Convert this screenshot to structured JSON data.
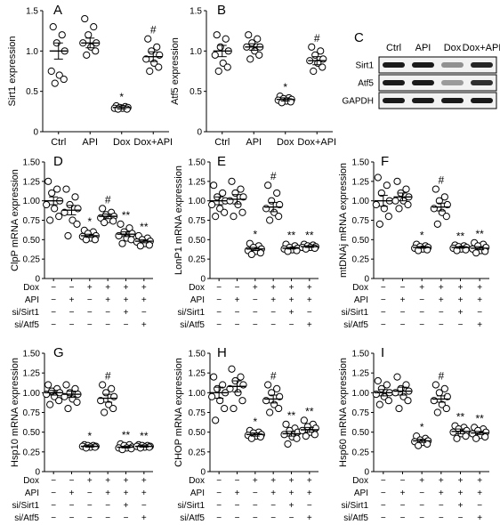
{
  "chart_data": [
    {
      "panel": "A",
      "type": "scatter",
      "ylabel": "Sirt1 expression",
      "ylim": [
        0,
        1.5
      ],
      "yticks": [
        "0",
        "0.5",
        "1.0",
        "1.5"
      ],
      "categories": [
        "Ctrl",
        "API",
        "Dox",
        "Dox+API"
      ],
      "means": [
        1.0,
        1.1,
        0.3,
        0.93
      ],
      "sem": [
        0.1,
        0.06,
        0.02,
        0.06
      ],
      "points": [
        [
          1.3,
          1.2,
          1.1,
          1.0,
          0.75,
          0.7,
          0.65,
          0.6
        ],
        [
          1.4,
          1.3,
          1.2,
          1.1,
          1.1,
          1.05,
          1.0,
          0.95
        ],
        [
          0.32,
          0.31,
          0.3,
          0.3,
          0.29,
          0.29,
          0.28,
          0.28
        ],
        [
          1.15,
          1.05,
          1.0,
          0.95,
          0.9,
          0.85,
          0.8,
          0.75
        ]
      ],
      "sig": [
        "",
        "",
        "*",
        "#"
      ]
    },
    {
      "panel": "B",
      "type": "scatter",
      "ylabel": "Atf5 expression",
      "ylim": [
        0,
        1.5
      ],
      "yticks": [
        "0",
        "0.5",
        "1.0",
        "1.5"
      ],
      "categories": [
        "Ctrl",
        "API",
        "Dox",
        "Dox+API"
      ],
      "means": [
        1.0,
        1.05,
        0.4,
        0.88
      ],
      "sem": [
        0.07,
        0.04,
        0.02,
        0.05
      ],
      "points": [
        [
          1.2,
          1.15,
          1.05,
          1.0,
          0.95,
          0.85,
          0.8,
          0.75
        ],
        [
          1.2,
          1.15,
          1.1,
          1.05,
          1.05,
          1.0,
          0.95,
          0.9
        ],
        [
          0.44,
          0.42,
          0.41,
          0.4,
          0.39,
          0.38,
          0.37,
          0.36
        ],
        [
          1.05,
          1.0,
          0.95,
          0.9,
          0.88,
          0.85,
          0.8,
          0.75
        ]
      ],
      "sig": [
        "",
        "",
        "*",
        "#"
      ]
    },
    {
      "panel": "D",
      "type": "scatter",
      "ylabel": "ClpP mRNA expression",
      "ylim": [
        0,
        1.5
      ],
      "yticks": [
        "0",
        "0.25",
        "0.50",
        "0.75",
        "1.00",
        "1.25",
        "1.50"
      ],
      "rows": [
        "Dox",
        "API",
        "si/Sirt1",
        "si/Atf5"
      ],
      "means": [
        1.0,
        0.88,
        0.55,
        0.8,
        0.57,
        0.48
      ],
      "sem": [
        0.05,
        0.06,
        0.02,
        0.03,
        0.03,
        0.02
      ],
      "points": [
        [
          1.25,
          1.15,
          1.1,
          1.0,
          0.95,
          0.9,
          0.8,
          0.75
        ],
        [
          1.15,
          1.05,
          0.95,
          0.9,
          0.85,
          0.75,
          0.7,
          0.55
        ],
        [
          0.62,
          0.6,
          0.58,
          0.55,
          0.54,
          0.52,
          0.5,
          0.5
        ],
        [
          0.9,
          0.85,
          0.82,
          0.8,
          0.78,
          0.76,
          0.74,
          0.72
        ],
        [
          0.7,
          0.65,
          0.6,
          0.58,
          0.55,
          0.52,
          0.5,
          0.45
        ],
        [
          0.55,
          0.52,
          0.5,
          0.48,
          0.47,
          0.45,
          0.43,
          0.42
        ]
      ],
      "sig": [
        "",
        "",
        "*",
        "#",
        "**",
        "**"
      ]
    },
    {
      "panel": "E",
      "type": "scatter",
      "ylabel": "LonP1 mRNA expression",
      "ylim": [
        0,
        1.5
      ],
      "yticks": [
        "0",
        "0.25",
        "0.50",
        "0.75",
        "1.00",
        "1.25",
        "1.50"
      ],
      "rows": [
        "Dox",
        "API",
        "si/Sirt1",
        "si/Atf5"
      ],
      "means": [
        1.0,
        1.02,
        0.38,
        0.92,
        0.39,
        0.41
      ],
      "sem": [
        0.05,
        0.06,
        0.02,
        0.06,
        0.01,
        0.01
      ],
      "points": [
        [
          1.2,
          1.1,
          1.05,
          1.0,
          0.95,
          0.9,
          0.85,
          0.8
        ],
        [
          1.25,
          1.15,
          1.1,
          1.05,
          1.0,
          0.95,
          0.85,
          0.8
        ],
        [
          0.45,
          0.42,
          0.4,
          0.38,
          0.36,
          0.35,
          0.33,
          0.31
        ],
        [
          1.2,
          1.1,
          1.0,
          0.95,
          0.9,
          0.85,
          0.8,
          0.75
        ],
        [
          0.44,
          0.42,
          0.4,
          0.39,
          0.38,
          0.37,
          0.36,
          0.35
        ],
        [
          0.44,
          0.43,
          0.42,
          0.41,
          0.4,
          0.4,
          0.39,
          0.38
        ]
      ],
      "sig": [
        "",
        "",
        "*",
        "#",
        "**",
        "**"
      ]
    },
    {
      "panel": "F",
      "type": "scatter",
      "ylabel": "mtDNAj mRNA expression",
      "ylim": [
        0,
        1.5
      ],
      "yticks": [
        "0",
        "0.25",
        "0.50",
        "0.75",
        "1.00",
        "1.25",
        "1.50"
      ],
      "rows": [
        "Dox",
        "API",
        "si/Sirt1",
        "si/Atf5"
      ],
      "means": [
        1.0,
        1.05,
        0.4,
        0.92,
        0.4,
        0.39
      ],
      "sem": [
        0.07,
        0.05,
        0.01,
        0.05,
        0.01,
        0.02
      ],
      "points": [
        [
          1.3,
          1.2,
          1.1,
          1.0,
          0.95,
          0.9,
          0.8,
          0.7
        ],
        [
          1.25,
          1.15,
          1.1,
          1.05,
          1.0,
          1.0,
          0.95,
          0.9
        ],
        [
          0.44,
          0.42,
          0.41,
          0.4,
          0.39,
          0.38,
          0.37,
          0.36
        ],
        [
          1.15,
          1.05,
          1.0,
          0.95,
          0.9,
          0.85,
          0.8,
          0.7
        ],
        [
          0.43,
          0.42,
          0.41,
          0.4,
          0.39,
          0.38,
          0.37,
          0.36
        ],
        [
          0.46,
          0.44,
          0.42,
          0.4,
          0.38,
          0.36,
          0.35,
          0.33
        ]
      ],
      "sig": [
        "",
        "",
        "*",
        "#",
        "**",
        "**"
      ]
    },
    {
      "panel": "G",
      "type": "scatter",
      "ylabel": "Hsp10 mRNA expression",
      "ylim": [
        0,
        1.5
      ],
      "yticks": [
        "0",
        "0.25",
        "0.50",
        "0.75",
        "1.00",
        "1.25",
        "1.50"
      ],
      "rows": [
        "Dox",
        "API",
        "si/Sirt1",
        "si/Atf5"
      ],
      "means": [
        1.0,
        0.98,
        0.32,
        0.93,
        0.31,
        0.32
      ],
      "sem": [
        0.03,
        0.04,
        0.01,
        0.05,
        0.01,
        0.01
      ],
      "points": [
        [
          1.1,
          1.05,
          1.02,
          1.0,
          0.98,
          0.95,
          0.9,
          0.85
        ],
        [
          1.1,
          1.05,
          1.0,
          0.98,
          0.95,
          0.92,
          0.88,
          0.8
        ],
        [
          0.34,
          0.33,
          0.33,
          0.32,
          0.32,
          0.31,
          0.31,
          0.3
        ],
        [
          1.1,
          1.05,
          1.0,
          0.95,
          0.9,
          0.85,
          0.8,
          0.75
        ],
        [
          0.35,
          0.34,
          0.33,
          0.31,
          0.3,
          0.3,
          0.29,
          0.28
        ],
        [
          0.34,
          0.33,
          0.33,
          0.32,
          0.32,
          0.31,
          0.31,
          0.3
        ]
      ],
      "sig": [
        "",
        "",
        "*",
        "#",
        "**",
        "**"
      ]
    },
    {
      "panel": "H",
      "type": "scatter",
      "ylabel": "CHOP mRNA expression",
      "ylim": [
        0,
        1.5
      ],
      "yticks": [
        "0",
        "0.25",
        "0.50",
        "0.75",
        "1.00",
        "1.25",
        "1.50"
      ],
      "rows": [
        "Dox",
        "API",
        "si/Sirt1",
        "si/Atf5"
      ],
      "means": [
        1.0,
        1.08,
        0.47,
        0.92,
        0.48,
        0.53
      ],
      "sem": [
        0.07,
        0.07,
        0.02,
        0.05,
        0.03,
        0.03
      ],
      "points": [
        [
          1.2,
          1.1,
          1.05,
          1.0,
          0.95,
          0.9,
          0.8,
          0.65
        ],
        [
          1.3,
          1.2,
          1.15,
          1.1,
          1.05,
          1.0,
          0.9,
          0.8
        ],
        [
          0.52,
          0.5,
          0.49,
          0.47,
          0.46,
          0.45,
          0.44,
          0.42
        ],
        [
          1.1,
          1.05,
          1.0,
          0.95,
          0.9,
          0.85,
          0.8,
          0.75
        ],
        [
          0.6,
          0.55,
          0.52,
          0.5,
          0.47,
          0.44,
          0.42,
          0.35
        ],
        [
          0.65,
          0.6,
          0.57,
          0.55,
          0.52,
          0.5,
          0.47,
          0.45
        ]
      ],
      "sig": [
        "",
        "",
        "*",
        "#",
        "**",
        "**"
      ]
    },
    {
      "panel": "I",
      "type": "scatter",
      "ylabel": "Hsp60 mRNA expression",
      "ylim": [
        0,
        1.5
      ],
      "yticks": [
        "0",
        "0.25",
        "0.50",
        "0.75",
        "1.00",
        "1.25",
        "1.50"
      ],
      "rows": [
        "Dox",
        "API",
        "si/Sirt1",
        "si/Atf5"
      ],
      "means": [
        1.0,
        1.02,
        0.39,
        0.92,
        0.51,
        0.49
      ],
      "sem": [
        0.04,
        0.05,
        0.02,
        0.04,
        0.03,
        0.02
      ],
      "points": [
        [
          1.15,
          1.1,
          1.05,
          1.0,
          0.98,
          0.95,
          0.9,
          0.85
        ],
        [
          1.2,
          1.1,
          1.05,
          1.02,
          1.0,
          0.95,
          0.9,
          0.8
        ],
        [
          0.45,
          0.42,
          0.4,
          0.39,
          0.38,
          0.37,
          0.35,
          0.33
        ],
        [
          1.1,
          1.05,
          1.0,
          0.95,
          0.9,
          0.85,
          0.8,
          0.75
        ],
        [
          0.58,
          0.56,
          0.54,
          0.52,
          0.5,
          0.48,
          0.45,
          0.42
        ],
        [
          0.56,
          0.54,
          0.52,
          0.5,
          0.48,
          0.46,
          0.44,
          0.42
        ]
      ],
      "sig": [
        "",
        "",
        "*",
        "#",
        "**",
        "**"
      ]
    }
  ],
  "treatment_table": {
    "rows": [
      "Dox",
      "API",
      "si/Sirt1",
      "si/Atf5"
    ],
    "cells": [
      [
        "−",
        "−",
        "+",
        "+",
        "+",
        "+"
      ],
      [
        "−",
        "+",
        "−",
        "+",
        "+",
        "+"
      ],
      [
        "−",
        "−",
        "−",
        "−",
        "+",
        "−"
      ],
      [
        "−",
        "−",
        "−",
        "−",
        "−",
        "+"
      ]
    ]
  },
  "western_blot": {
    "panel": "C",
    "lanes": [
      "Ctrl",
      "API",
      "Dox",
      "Dox+API"
    ],
    "bands": [
      "Sirt1",
      "Atf5",
      "GAPDH"
    ],
    "intensity": [
      [
        1.0,
        1.0,
        0.45,
        0.95
      ],
      [
        1.0,
        1.0,
        0.4,
        0.9
      ],
      [
        1.0,
        1.0,
        1.0,
        1.0
      ]
    ]
  }
}
